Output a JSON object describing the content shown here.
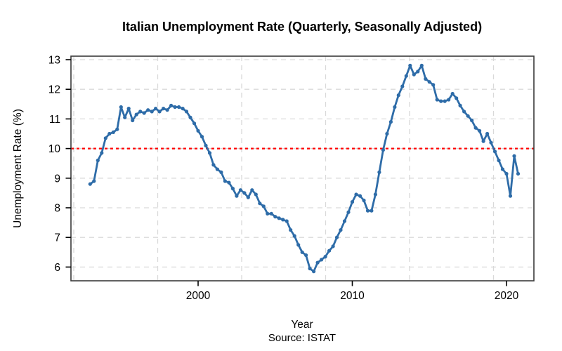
{
  "title": "Italian Unemployment Rate (Quarterly, Seasonally Adjusted)",
  "source_note": "Source: ISTAT",
  "x_axis": {
    "label": "Year",
    "tick_labels": [
      "2000",
      "2010",
      "2020"
    ]
  },
  "y_axis": {
    "label": "Unemployment Rate (%)",
    "tick_labels": [
      "13",
      "12",
      "11",
      "10",
      "9",
      "8",
      "7",
      "6"
    ]
  },
  "colors": {
    "line": "#2e6ca8",
    "point": "#2e6ca8",
    "reference_line": "#ff0000",
    "grid": "#d9d9d9",
    "axis": "#3a3a3a",
    "text": "#000000",
    "background": "#ffffff"
  },
  "chart_data": {
    "type": "line",
    "title": "Italian Unemployment Rate (Quarterly, Seasonally Adjusted)",
    "xlabel": "Year",
    "ylabel": "Unemployment Rate (%)",
    "annotation": "Source: ISTAT",
    "frequency": "quarterly",
    "x_start": 1993.0,
    "x_step": 0.25,
    "first_quarter": "1993Q1",
    "last_quarter": "2020Q4",
    "xlim": [
      1992.5,
      2021.5
    ],
    "ylim": [
      6,
      13
    ],
    "x_ticks": [
      2000,
      2010,
      2020
    ],
    "y_ticks": [
      13,
      12,
      11,
      10,
      9,
      8,
      7,
      6
    ],
    "grid": true,
    "reference_line_y": 10,
    "values": [
      8.8,
      8.9,
      9.6,
      9.85,
      10.35,
      10.5,
      10.55,
      10.65,
      11.4,
      11.05,
      11.35,
      10.95,
      11.15,
      11.25,
      11.2,
      11.3,
      11.25,
      11.35,
      11.25,
      11.35,
      11.3,
      11.45,
      11.4,
      11.4,
      11.35,
      11.25,
      11.05,
      10.85,
      10.6,
      10.4,
      10.1,
      9.85,
      9.45,
      9.3,
      9.2,
      8.9,
      8.85,
      8.65,
      8.4,
      8.6,
      8.5,
      8.35,
      8.6,
      8.45,
      8.15,
      8.05,
      7.8,
      7.8,
      7.7,
      7.65,
      7.6,
      7.55,
      7.25,
      7.05,
      6.75,
      6.5,
      6.4,
      5.95,
      5.85,
      6.15,
      6.25,
      6.35,
      6.55,
      6.7,
      7.0,
      7.25,
      7.55,
      7.85,
      8.2,
      8.45,
      8.4,
      8.25,
      7.9,
      7.9,
      8.45,
      9.2,
      9.95,
      10.5,
      10.9,
      11.4,
      11.8,
      12.1,
      12.45,
      12.8,
      12.5,
      12.6,
      12.8,
      12.35,
      12.25,
      12.15,
      11.65,
      11.6,
      11.6,
      11.65,
      11.85,
      11.7,
      11.45,
      11.25,
      11.1,
      10.95,
      10.7,
      10.6,
      10.25,
      10.5,
      10.2,
      9.9,
      9.6,
      9.3,
      9.15,
      8.4,
      9.75,
      9.15
    ]
  }
}
